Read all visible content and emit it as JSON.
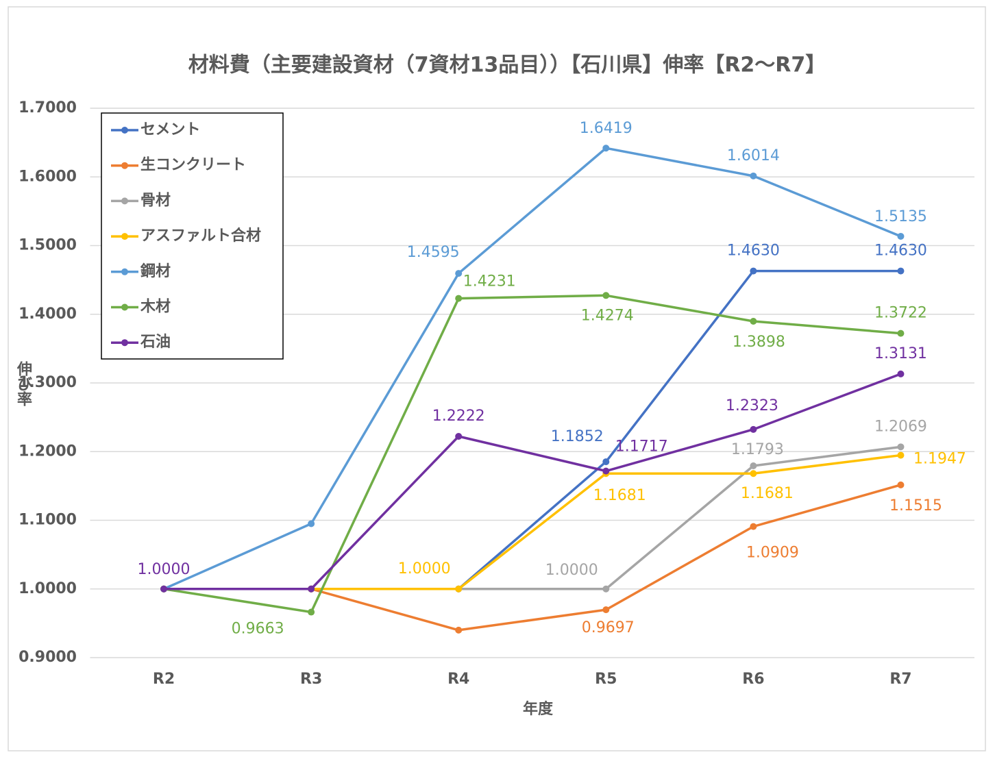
{
  "chart_data": {
    "type": "line",
    "title": "材料費（主要建設資材（7資材13品目））【石川県】伸率【R2～R7】",
    "xlabel": "年度",
    "ylabel": "伸び率",
    "categories": [
      "R2",
      "R3",
      "R4",
      "R5",
      "R6",
      "R7"
    ],
    "ylim": [
      0.9,
      1.7
    ],
    "yticks": [
      {
        "value": 0.9,
        "label": "0.9000"
      },
      {
        "value": 1.0,
        "label": "1.0000"
      },
      {
        "value": 1.1,
        "label": "1.1000"
      },
      {
        "value": 1.2,
        "label": "1.2000"
      },
      {
        "value": 1.3,
        "label": "1.3000"
      },
      {
        "value": 1.4,
        "label": "1.4000"
      },
      {
        "value": 1.5,
        "label": "1.5000"
      },
      {
        "value": 1.6,
        "label": "1.6000"
      },
      {
        "value": 1.7,
        "label": "1.7000"
      }
    ],
    "grid": true,
    "legend": "upper left",
    "series": [
      {
        "name": "セメント",
        "color": "#4472c4",
        "values": [
          1.0,
          1.0,
          1.0,
          1.1852,
          1.463,
          1.463
        ],
        "value_labels": [
          null,
          null,
          null,
          "1.1852",
          "1.4630",
          "1.4630"
        ]
      },
      {
        "name": "生コンクリート",
        "color": "#ed7d31",
        "values": [
          1.0,
          1.0,
          0.94,
          0.9697,
          1.0909,
          1.1515
        ],
        "value_labels": [
          null,
          null,
          null,
          "0.9697",
          "1.0909",
          "1.1515"
        ]
      },
      {
        "name": "骨材",
        "color": "#a5a5a5",
        "values": [
          1.0,
          1.0,
          1.0,
          1.0,
          1.1793,
          1.2069
        ],
        "value_labels": [
          null,
          null,
          null,
          "1.0000",
          "1.1793",
          "1.2069"
        ]
      },
      {
        "name": "アスファルト合材",
        "color": "#ffc000",
        "values": [
          1.0,
          1.0,
          1.0,
          1.1681,
          1.1681,
          1.1947
        ],
        "value_labels": [
          null,
          null,
          "1.0000",
          "1.1681",
          "1.1681",
          "1.1947"
        ]
      },
      {
        "name": "鋼材",
        "color": "#5b9bd5",
        "values": [
          1.0,
          1.095,
          1.4595,
          1.6419,
          1.6014,
          1.5135
        ],
        "value_labels": [
          null,
          null,
          "1.4595",
          "1.6419",
          "1.6014",
          "1.5135"
        ]
      },
      {
        "name": "木材",
        "color": "#70ad47",
        "values": [
          1.0,
          0.9663,
          1.4231,
          1.4274,
          1.3898,
          1.3722
        ],
        "value_labels": [
          null,
          "0.9663",
          "1.4231",
          "1.4274",
          "1.3898",
          "1.3722"
        ]
      },
      {
        "name": "石油",
        "color": "#7030a0",
        "values": [
          1.0,
          1.0,
          1.2222,
          1.1717,
          1.2323,
          1.3131
        ],
        "value_labels": [
          "1.0000",
          null,
          "1.2222",
          "1.1717",
          "1.2323",
          "1.3131"
        ]
      }
    ]
  }
}
